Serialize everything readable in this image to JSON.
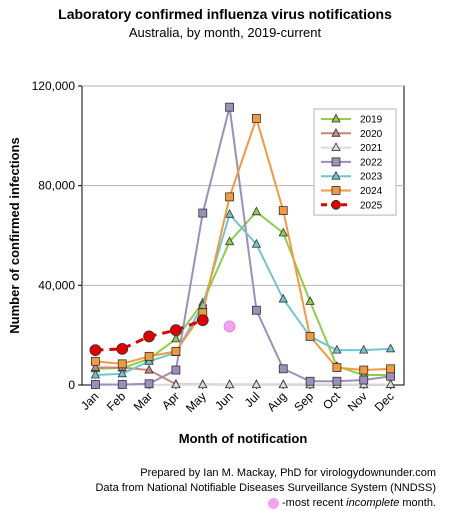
{
  "title": "Laboratory confirmed influenza virus notifications",
  "subtitle": "Australia, by month, 2019-current",
  "credit_line1": "Prepared by Ian M. Mackay, PhD for virologydownunder.com",
  "credit_line2": "Data from National Notifiable Diseases Surveillance System (NNDSS)",
  "note_prefix": "-most recent ",
  "note_italic": "incomplete",
  "note_suffix": " month.",
  "chart_data": {
    "type": "line",
    "xlabel": "Month of notification",
    "ylabel": "Number of confirmed infections",
    "categories": [
      "Jan",
      "Feb",
      "Mar",
      "Apr",
      "May",
      "Jun",
      "Jul",
      "Aug",
      "Sep",
      "Oct",
      "Nov",
      "Dec"
    ],
    "ylim": [
      0,
      120000
    ],
    "yticks": [
      0,
      40000,
      80000,
      120000
    ],
    "ytick_labels": [
      "0",
      "40,000",
      "80,000",
      "120,000"
    ],
    "grid": true,
    "legend_position": "top-right",
    "series": [
      {
        "name": "2019",
        "color": "#8ccf4d",
        "marker": "triangle",
        "values": [
          6500,
          6800,
          10500,
          18500,
          33000,
          57500,
          69500,
          61000,
          33500,
          7500,
          4000,
          4000
        ]
      },
      {
        "name": "2020",
        "color": "#c9867a",
        "marker": "triangle",
        "values": [
          7000,
          7000,
          6000,
          300,
          200,
          150,
          150,
          150,
          100,
          100,
          100,
          100
        ]
      },
      {
        "name": "2021",
        "color": "#e0d7dd",
        "marker": "triangle",
        "values": [
          100,
          100,
          100,
          100,
          100,
          100,
          100,
          100,
          100,
          150,
          150,
          200
        ]
      },
      {
        "name": "2022",
        "color": "#9c8fbd",
        "marker": "square",
        "values": [
          200,
          200,
          500,
          6000,
          69000,
          111500,
          30000,
          6500,
          1500,
          1500,
          2000,
          3500
        ]
      },
      {
        "name": "2023",
        "color": "#6fc6d1",
        "marker": "triangle",
        "values": [
          4000,
          4500,
          9500,
          13000,
          32000,
          68500,
          56500,
          34500,
          19500,
          14000,
          14000,
          14500
        ]
      },
      {
        "name": "2024",
        "color": "#f29a3d",
        "marker": "square",
        "values": [
          9500,
          8500,
          11500,
          13500,
          29000,
          75500,
          107000,
          70000,
          19500,
          7000,
          6000,
          6500
        ]
      },
      {
        "name": "2025",
        "color": "#e00000",
        "marker": "circle",
        "dashed": true,
        "values": [
          14000,
          14500,
          19500,
          22000,
          26000,
          null,
          null,
          null,
          null,
          null,
          null,
          null
        ]
      }
    ],
    "incomplete_point": {
      "category": "Jun",
      "value": 23500,
      "color": "#f5a3f0"
    }
  }
}
